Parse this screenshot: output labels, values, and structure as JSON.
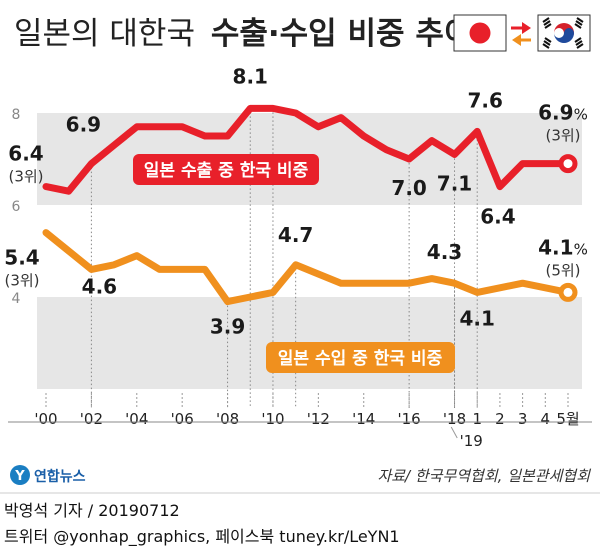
{
  "chart_data": {
    "type": "line",
    "title_light": "일본의 대한국",
    "title_bold": "수출·수입 비중 추이",
    "x": [
      "2000",
      "2001",
      "2002",
      "2003",
      "2004",
      "2005",
      "2006",
      "2007",
      "2008",
      "2009",
      "2010",
      "2011",
      "2012",
      "2013",
      "2014",
      "2015",
      "2016",
      "2017",
      "2018",
      "2019-01",
      "2019-02",
      "2019-03",
      "2019-04",
      "2019-05"
    ],
    "x_tick_labels": [
      "'00",
      "'02",
      "'04",
      "'06",
      "'08",
      "'10",
      "'12",
      "'14",
      "'16",
      "'18",
      "1",
      "2",
      "3",
      "4",
      "5월"
    ],
    "x_year_label": "'19",
    "y_ticks": [
      "4",
      "6",
      "8"
    ],
    "ylim": [
      2,
      9
    ],
    "grid": false,
    "series": [
      {
        "name": "일본 수출 중 한국 비중",
        "color": "#e8202a",
        "values": [
          6.4,
          6.3,
          6.9,
          7.3,
          7.7,
          7.7,
          7.7,
          7.5,
          7.5,
          8.1,
          8.1,
          8.0,
          7.7,
          7.9,
          7.5,
          7.2,
          7.0,
          7.4,
          7.1,
          7.6,
          6.4,
          6.9,
          6.9,
          6.9
        ]
      },
      {
        "name": "일본 수입 중 한국 비중",
        "color": "#f0901e",
        "values": [
          5.4,
          5.0,
          4.6,
          4.7,
          4.9,
          4.6,
          4.6,
          4.6,
          3.9,
          4.0,
          4.1,
          4.7,
          4.5,
          4.3,
          4.3,
          4.3,
          4.3,
          4.4,
          4.3,
          4.1,
          4.2,
          4.3,
          4.2,
          4.1
        ]
      }
    ],
    "value_labels": [
      {
        "series": 0,
        "index": 0,
        "text": "6.4",
        "sub": "(3위)"
      },
      {
        "series": 0,
        "index": 2,
        "text": "6.9"
      },
      {
        "series": 0,
        "index": 9,
        "text": "8.1"
      },
      {
        "series": 0,
        "index": 16,
        "text": "7.0"
      },
      {
        "series": 0,
        "index": 18,
        "text": "7.1"
      },
      {
        "series": 0,
        "index": 19,
        "text": "7.6"
      },
      {
        "series": 0,
        "index": 20,
        "text": "6.4"
      },
      {
        "series": 0,
        "index": 23,
        "text": "6.9",
        "unit": "%",
        "sub": "(3위)"
      },
      {
        "series": 1,
        "index": 0,
        "text": "5.4",
        "sub": "(3위)"
      },
      {
        "series": 1,
        "index": 2,
        "text": "4.6"
      },
      {
        "series": 1,
        "index": 8,
        "text": "3.9"
      },
      {
        "series": 1,
        "index": 11,
        "text": "4.7"
      },
      {
        "series": 1,
        "index": 18,
        "text": "4.3"
      },
      {
        "series": 1,
        "index": 19,
        "text": "4.1"
      },
      {
        "series": 1,
        "index": 23,
        "text": "4.1",
        "unit": "%",
        "sub": "(5위)"
      }
    ]
  },
  "flags": {
    "left": "japan-flag-icon",
    "right": "korea-flag-icon",
    "arrow_top_color": "#e8202a",
    "arrow_bottom_color": "#f0901e"
  },
  "source": "자료/ 한국무역협회, 일본관세협회",
  "logo_text": "연합뉴스",
  "credit": {
    "line1": "박영석 기자 /  20190712",
    "line2": "트위터 @yonhap_graphics, 페이스북 tuney.kr/LeYN1"
  }
}
